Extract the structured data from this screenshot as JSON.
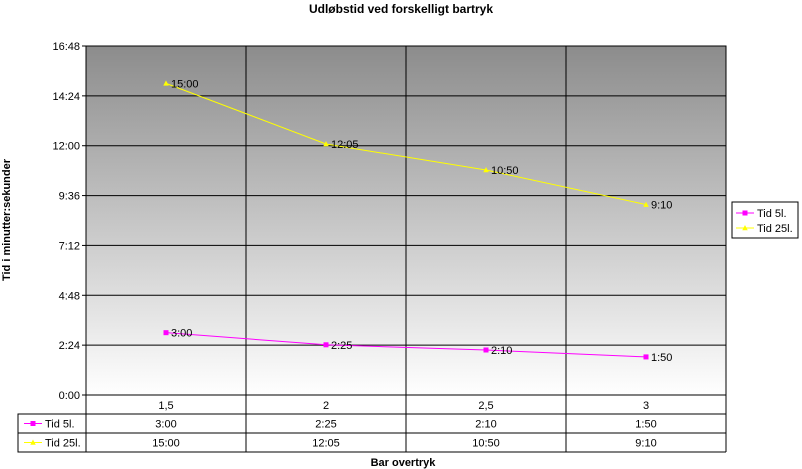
{
  "chart_data": {
    "type": "line",
    "title": "Udløbstid ved forskelligt bartryk",
    "xlabel": "Bar overtryk",
    "ylabel": "Tid i minutter:sekunder",
    "categories": [
      "1,5",
      "2",
      "2,5",
      "3"
    ],
    "y_ticks": [
      "0:00",
      "2:24",
      "4:48",
      "7:12",
      "9:36",
      "12:00",
      "14:24",
      "16:48"
    ],
    "ylim_seconds": [
      0,
      1008
    ],
    "y_step_seconds": 144,
    "grid": true,
    "legend_position": "right",
    "series": [
      {
        "name": "Tid 5l.",
        "color": "#ff00ff",
        "marker": "square",
        "values": [
          180,
          145,
          130,
          110
        ],
        "labels": [
          "3:00",
          "2:25",
          "2:10",
          "1:50"
        ]
      },
      {
        "name": "Tid 25l.",
        "color": "#ffff00",
        "marker": "triangle",
        "values": [
          900,
          725,
          650,
          550
        ],
        "labels": [
          "15:00",
          "12:05",
          "10:50",
          "9:10"
        ]
      }
    ]
  }
}
